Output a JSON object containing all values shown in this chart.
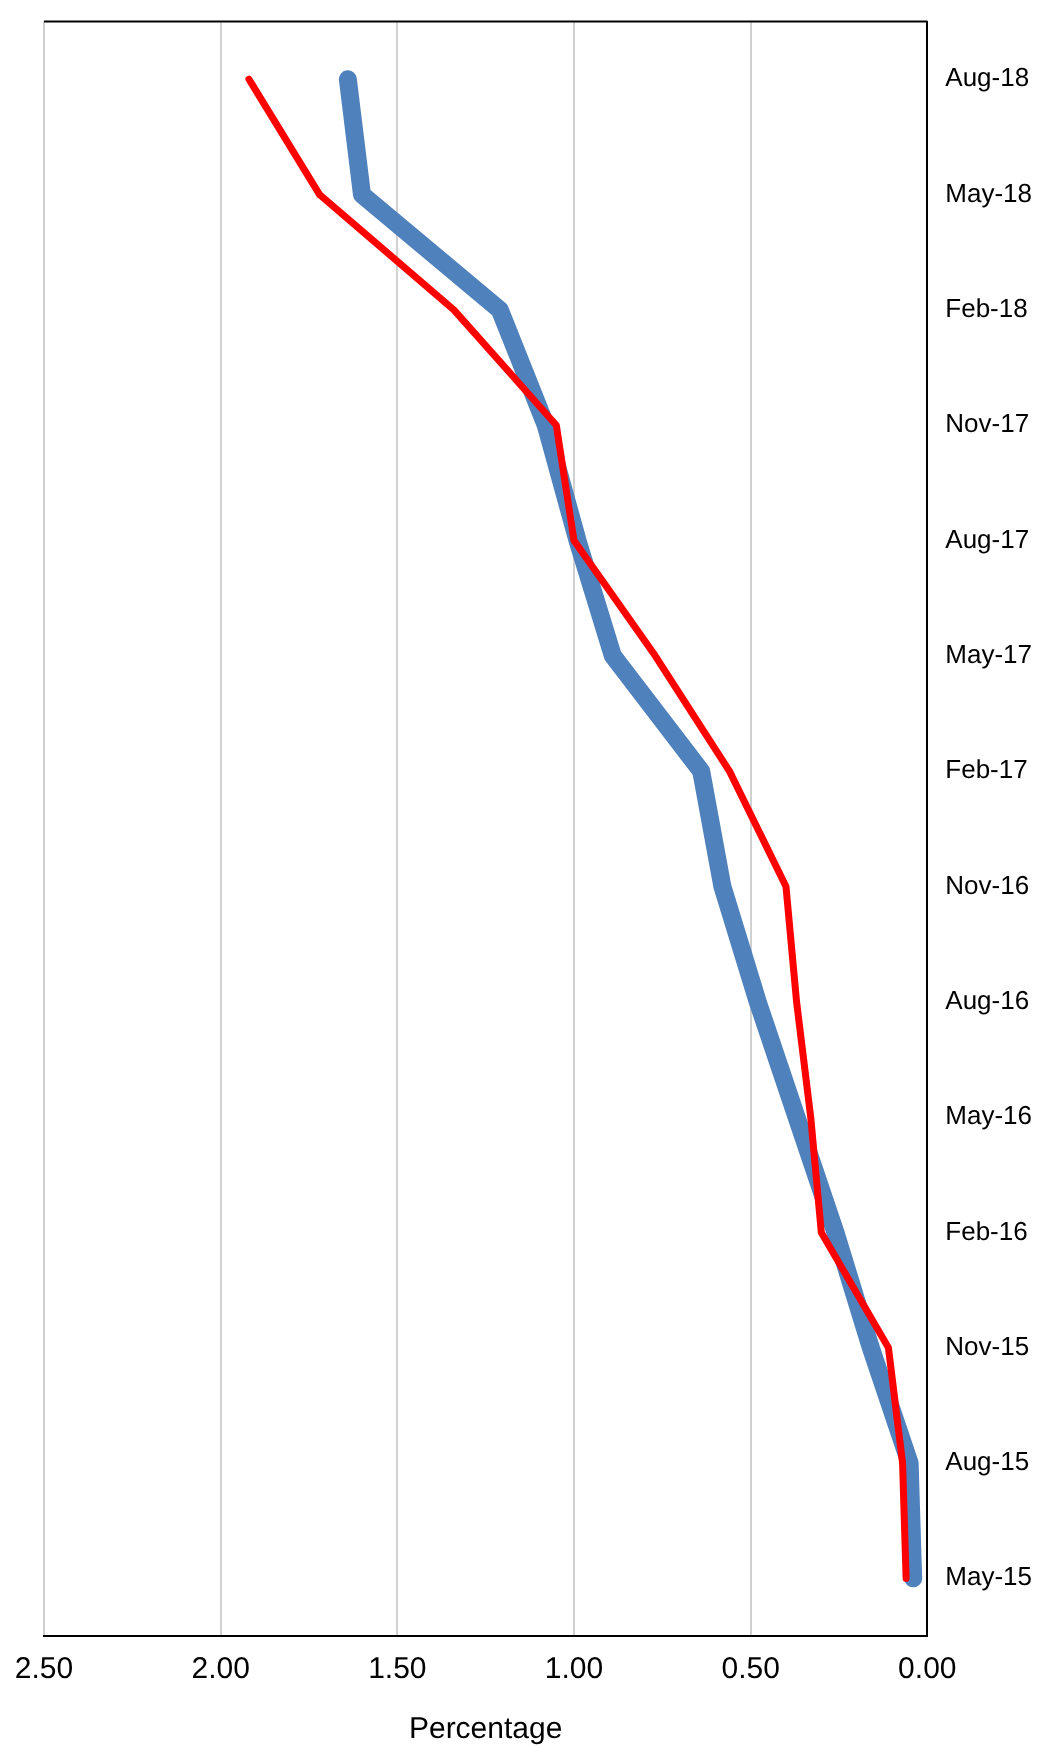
{
  "chart_data": {
    "type": "line",
    "orientation": "horizontal",
    "xlabel": "Percentage",
    "categories": [
      "Aug-18",
      "May-18",
      "Feb-18",
      "Nov-17",
      "Aug-17",
      "May-17",
      "Feb-17",
      "Nov-16",
      "Aug-16",
      "May-16",
      "Feb-16",
      "Nov-15",
      "Aug-15",
      "May-15"
    ],
    "series": [
      {
        "color": "#4f81bd",
        "values": [
          1.64,
          1.6,
          1.21,
          1.08,
          0.99,
          0.89,
          0.64,
          0.58,
          0.48,
          0.37,
          0.26,
          0.16,
          0.05,
          0.04
        ]
      },
      {
        "color": "#ff0000",
        "values": [
          1.92,
          1.72,
          1.34,
          1.05,
          1.0,
          0.77,
          0.56,
          0.4,
          0.37,
          0.33,
          0.3,
          0.11,
          0.07,
          0.06
        ]
      }
    ],
    "xlim": [
      2.5,
      0
    ],
    "xticks": [
      {
        "value": 0,
        "label": "0.00"
      },
      {
        "value": 0.5,
        "label": "0.50"
      },
      {
        "value": 1,
        "label": "1.00"
      },
      {
        "value": 1.5,
        "label": "1.50"
      },
      {
        "value": 2,
        "label": "2.00"
      },
      {
        "value": 2.5,
        "label": "2.50"
      }
    ],
    "grid": "x",
    "marker": "none",
    "line_style": "solid"
  }
}
